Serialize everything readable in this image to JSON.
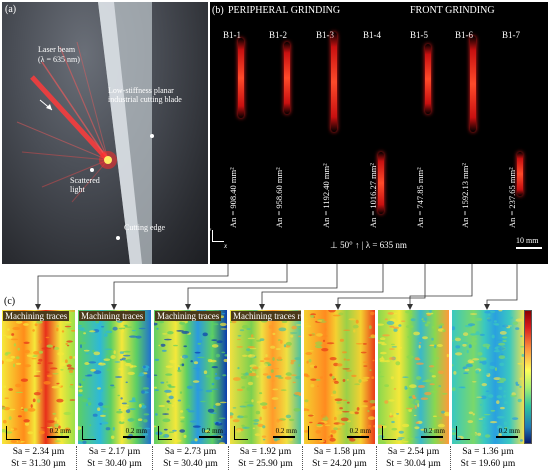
{
  "panel_a": {
    "label": "(a)",
    "laser_beam": "Laser beam",
    "lambda": "(λ = 635 nm)",
    "blade_label": "Low-stiffness planar industrial cutting blade",
    "scattered": "Scattered light",
    "cutting_edge": "Cutting edge"
  },
  "panel_b": {
    "label": "(b)",
    "peripheral": "PERIPHERAL GRINDING",
    "front": "FRONT GRINDING",
    "samples": [
      {
        "id": "B1-1",
        "an": "An = 908.40 mm²"
      },
      {
        "id": "B1-2",
        "an": "An = 958.60 mm²"
      },
      {
        "id": "B1-3",
        "an": "An = 1192.40 mm²"
      },
      {
        "id": "B1-4",
        "an": "An = 1016.27 mm²"
      },
      {
        "id": "B1-5",
        "an": "An = 747.85 mm²"
      },
      {
        "id": "B1-6",
        "an": "An = 1592.13 mm²"
      },
      {
        "id": "B1-7",
        "an": "An = 237.65 mm²"
      }
    ],
    "condition": "⊥ 50° ↑ | λ = 635 nm",
    "scale": "10 mm",
    "axis_y": "y",
    "axis_x": "x"
  },
  "panel_c": {
    "label": "(c)",
    "tiles": [
      {
        "title": "Machining traces",
        "sa": "Sa = 2.34 µm",
        "st": "St = 31.30 µm",
        "scale": "0.2 mm"
      },
      {
        "title": "Machining traces",
        "sa": "Sa = 2.17 µm",
        "st": "St = 30.40 µm",
        "scale": "0.2 mm"
      },
      {
        "title": "Machining traces",
        "sa": "Sa = 2.73 µm",
        "st": "St = 30.40 µm",
        "scale": "0.2 mm"
      },
      {
        "title": "Machining traces residues",
        "sa": "Sa = 1.92 µm",
        "st": "St = 25.90 µm",
        "scale": "0.2 mm"
      },
      {
        "title": "",
        "sa": "Sa = 1.58 µm",
        "st": "St = 24.20 µm",
        "scale": "0.2 mm"
      },
      {
        "title": "",
        "sa": "Sa = 2.54 µm",
        "st": "St = 30.04 µm",
        "scale": "0.2 mm"
      },
      {
        "title": "",
        "sa": "Sa = 1.36 µm",
        "st": "St = 19.60 µm",
        "scale": "0.2 mm"
      }
    ]
  },
  "colors": {
    "laser": "#ff2a2a",
    "trace_bg": "#000000"
  }
}
